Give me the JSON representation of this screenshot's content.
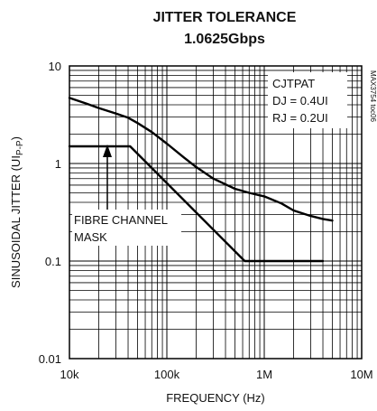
{
  "chart_data": {
    "type": "line",
    "title": "JITTER TOLERANCE",
    "subtitle": "1.0625Gbps",
    "xlabel": "FREQUENCY (Hz)",
    "ylabel_main": "SINUSOIDAL JITTER (UI",
    "ylabel_sub": "P-P",
    "ylabel_close": ")",
    "x_scale": "log",
    "y_scale": "log",
    "xlim": [
      10000,
      10000000
    ],
    "ylim": [
      0.01,
      10
    ],
    "grid": true,
    "x_ticks": [
      {
        "value": 10000,
        "label": "10k"
      },
      {
        "value": 100000,
        "label": "100k"
      },
      {
        "value": 1000000,
        "label": "1M"
      },
      {
        "value": 10000000,
        "label": "10M"
      }
    ],
    "y_ticks": [
      {
        "value": 10,
        "label": "10"
      },
      {
        "value": 1,
        "label": "1"
      },
      {
        "value": 0.1,
        "label": "0.1"
      },
      {
        "value": 0.01,
        "label": "0.01"
      }
    ],
    "legend_box": [
      "CJTPAT",
      "DJ = 0.4UI",
      "RJ = 0.2UI"
    ],
    "legend_placement": "top-right",
    "annotation_lines": [
      "FIBRE CHANNEL",
      "MASK"
    ],
    "side_tag": "MAX3754 toc06",
    "series": [
      {
        "x": [
          10000,
          15000,
          20000,
          30000,
          40000,
          50000,
          70000,
          100000,
          150000,
          200000,
          300000,
          500000,
          700000,
          1000000,
          1500000,
          2000000,
          3000000,
          4000000,
          5000000
        ],
        "y": [
          4.7,
          4.1,
          3.7,
          3.25,
          2.95,
          2.6,
          2.1,
          1.6,
          1.15,
          0.92,
          0.7,
          0.55,
          0.5,
          0.46,
          0.39,
          0.33,
          0.29,
          0.27,
          0.26
        ]
      },
      {
        "x": [
          10000,
          42000,
          630000,
          4000000
        ],
        "y": [
          1.5,
          1.5,
          0.1,
          0.1
        ]
      }
    ]
  }
}
